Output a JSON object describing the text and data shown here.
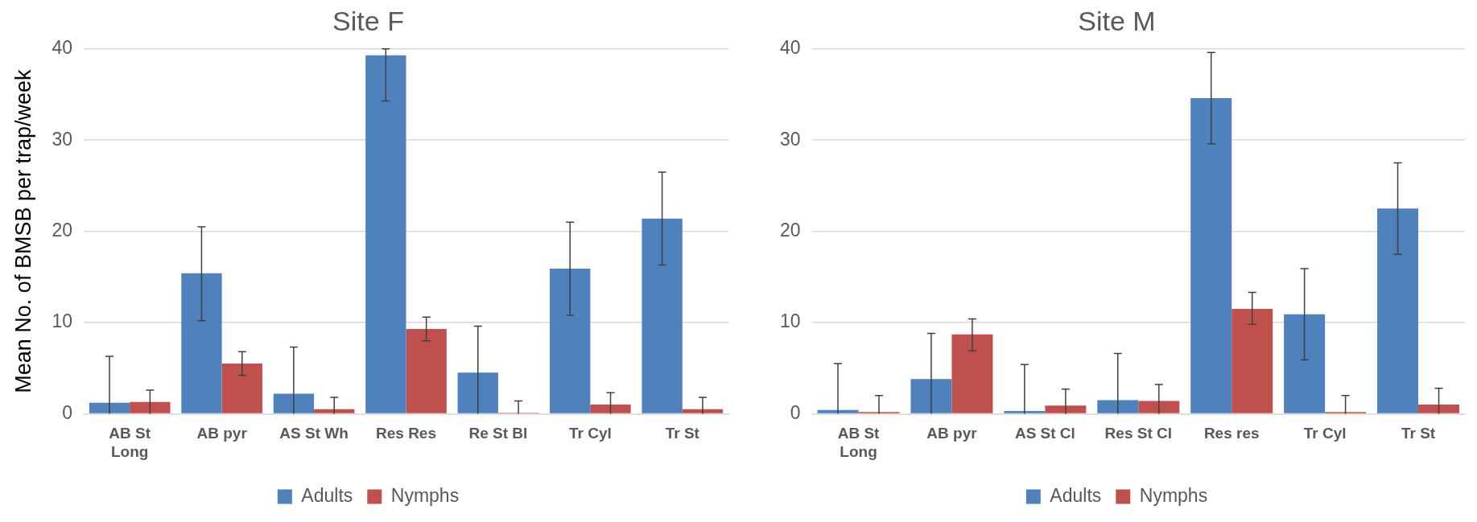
{
  "chart_data": [
    {
      "type": "bar",
      "title": "Site F",
      "ylabel": "Mean No. of BMSB per trap/week",
      "categories": [
        "AB St Long",
        "AB pyr",
        "AS St Wh",
        "Res Res",
        "Re St Bl",
        "Tr Cyl",
        "Tr St"
      ],
      "series": [
        {
          "name": "Adults",
          "color": "#4f81bd",
          "values": [
            1.2,
            15.4,
            2.2,
            39.3,
            4.5,
            15.9,
            21.4
          ],
          "errors": [
            [
              0,
              6.3
            ],
            [
              10.2,
              20.5
            ],
            [
              0,
              7.3
            ],
            [
              34.3,
              40
            ],
            [
              0,
              9.6
            ],
            [
              10.8,
              21.0
            ],
            [
              16.3,
              26.5
            ]
          ]
        },
        {
          "name": "Nymphs",
          "color": "#c0504d",
          "values": [
            1.3,
            5.5,
            0.5,
            9.3,
            0.1,
            1.0,
            0.5
          ],
          "errors": [
            [
              0,
              2.6
            ],
            [
              4.2,
              6.8
            ],
            [
              0,
              1.8
            ],
            [
              8.0,
              10.6
            ],
            [
              0,
              1.4
            ],
            [
              0,
              2.3
            ],
            [
              0,
              1.8
            ]
          ]
        }
      ],
      "ylim": [
        0,
        40
      ],
      "yticks": [
        0,
        10,
        20,
        30,
        40
      ],
      "grid": "y",
      "legend": "bottom"
    },
    {
      "type": "bar",
      "title": "Site M",
      "categories": [
        "AB St Long",
        "AB pyr",
        "AS St Cl",
        "Res St Cl",
        "Res res",
        "Tr Cyl",
        "Tr St"
      ],
      "series": [
        {
          "name": "Adults",
          "color": "#4f81bd",
          "values": [
            0.4,
            3.8,
            0.3,
            1.5,
            34.6,
            10.9,
            22.5
          ],
          "errors": [
            [
              0,
              5.5
            ],
            [
              0,
              8.8
            ],
            [
              0,
              5.4
            ],
            [
              0,
              6.6
            ],
            [
              29.6,
              39.6
            ],
            [
              5.9,
              15.9
            ],
            [
              17.5,
              27.5
            ]
          ]
        },
        {
          "name": "Nymphs",
          "color": "#c0504d",
          "values": [
            0.2,
            8.7,
            0.9,
            1.4,
            11.5,
            0.2,
            1.0
          ],
          "errors": [
            [
              0,
              2.0
            ],
            [
              6.9,
              10.4
            ],
            [
              0,
              2.7
            ],
            [
              0,
              3.2
            ],
            [
              9.8,
              13.3
            ],
            [
              0,
              2.0
            ],
            [
              0,
              2.8
            ]
          ]
        }
      ],
      "ylim": [
        0,
        40
      ],
      "yticks": [
        0,
        10,
        20,
        30,
        40
      ],
      "grid": "y",
      "legend": "bottom"
    }
  ]
}
